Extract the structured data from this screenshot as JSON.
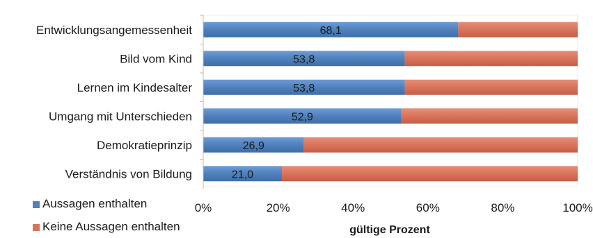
{
  "chart_data": {
    "type": "bar",
    "orientation": "horizontal",
    "stacked": true,
    "categories": [
      "Entwicklungsangemessenheit",
      "Bild vom Kind",
      "Lernen im Kindesalter",
      "Umgang mit Unterschieden",
      "Demokratieprinzip",
      "Verständnis von Bildung"
    ],
    "series": [
      {
        "name": "Aussagen enthalten",
        "values": [
          68.1,
          53.8,
          53.8,
          52.9,
          26.9,
          21.0
        ],
        "color": "#4f81bd"
      },
      {
        "name": "Keine Aussagen enthalten",
        "values": [
          31.9,
          46.2,
          46.2,
          47.1,
          73.1,
          79.0
        ],
        "color": "#d9735a"
      }
    ],
    "data_labels": [
      "68,1",
      "53,8",
      "53,8",
      "52,9",
      "26,9",
      "21,0"
    ],
    "x_ticks": [
      "0%",
      "20%",
      "40%",
      "60%",
      "80%",
      "100%"
    ],
    "xlabel": "gültige Prozent",
    "ylabel": "",
    "xlim": [
      0,
      100
    ],
    "grid": false,
    "legend_position": "bottom-left"
  }
}
